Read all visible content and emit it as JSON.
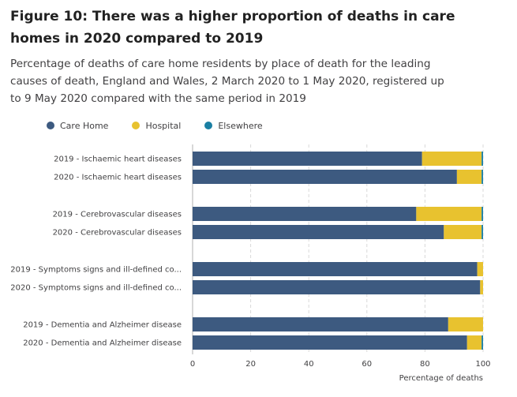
{
  "title": "Figure 10: There was a higher proportion of deaths in care homes in 2020 compared to 2019",
  "subtitle": "Percentage of deaths of care home residents by place of death for the leading causes of death, England and Wales, 2 March 2020 to 1 May 2020, registered up to 9 May 2020 compared with the same period in 2019",
  "legend": [
    {
      "name": "Care Home",
      "color": "#3d5a80"
    },
    {
      "name": "Hospital",
      "color": "#e8c22f"
    },
    {
      "name": "Elsewhere",
      "color": "#1a7fa3"
    }
  ],
  "chart_data": {
    "type": "bar",
    "orientation": "horizontal",
    "stacked": true,
    "categories": [
      "2019 - Ischaemic heart diseases",
      "2020 - Ischaemic heart diseases",
      "2019 - Cerebrovascular diseases",
      "2020 - Cerebrovascular diseases",
      "2019 - Symptoms signs and ill-defined co...",
      "2020 - Symptoms signs and ill-defined co...",
      "2019 - Dementia and Alzheimer disease",
      "2020 - Dementia and Alzheimer disease"
    ],
    "series": [
      {
        "name": "Care Home",
        "color": "#3d5a80",
        "values": [
          79,
          91,
          77,
          86.5,
          98,
          99,
          88,
          94.5
        ]
      },
      {
        "name": "Hospital",
        "color": "#e8c22f",
        "values": [
          20.5,
          8.5,
          22.5,
          13,
          2,
          1,
          12,
          5
        ]
      },
      {
        "name": "Elsewhere",
        "color": "#1a7fa3",
        "values": [
          0.5,
          0.5,
          0.5,
          0.5,
          0,
          0,
          0,
          0.5
        ]
      }
    ],
    "xlabel": "Percentage of deaths",
    "xlim": [
      0,
      100
    ],
    "xticks": [
      0,
      20,
      40,
      60,
      80,
      100
    ],
    "grid": true,
    "legend_position": "top-left"
  }
}
